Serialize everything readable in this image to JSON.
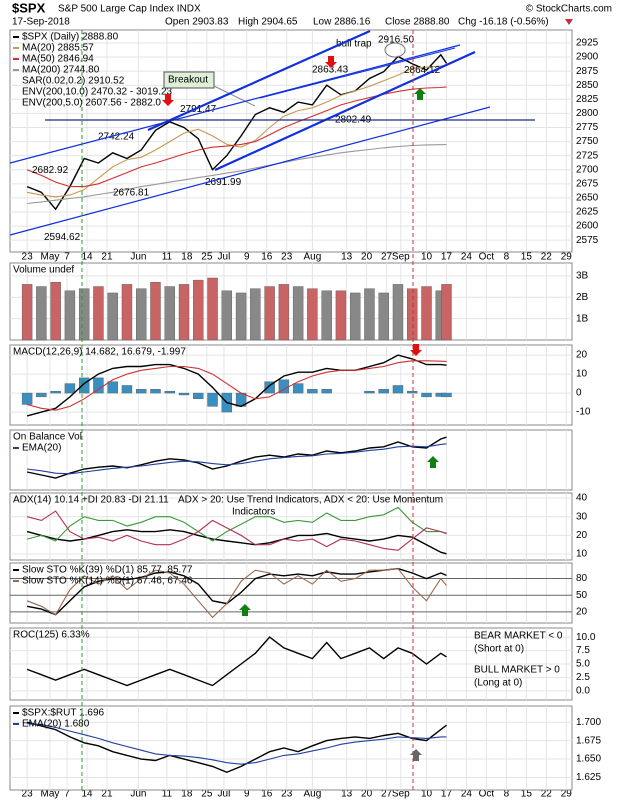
{
  "chart_data": {
    "type": "stock",
    "title": "$SPX",
    "subtitle": "S&P 500 Large Cap Index INDX",
    "date": "17-Sep-2018",
    "quote": [
      "Open 2903.83",
      "High 2904.65",
      "Low 2886.16",
      "Close 2888.80",
      "Chg -16.18 (-0.56%)"
    ],
    "credit": "© StockCharts.com",
    "x": [
      0,
      5,
      10,
      15,
      20,
      25,
      30,
      35,
      40,
      45,
      50,
      55,
      60,
      65,
      70,
      75,
      80,
      85,
      90,
      95,
      100,
      105,
      110,
      115,
      120,
      125,
      130,
      135,
      140,
      145,
      147
    ],
    "xlim": [
      -6,
      191
    ],
    "xticks": [
      {
        "value": 0,
        "label": "23"
      },
      {
        "value": 8,
        "label": "May"
      },
      {
        "value": 14,
        "label": "7"
      },
      {
        "value": 21,
        "label": "14"
      },
      {
        "value": 28,
        "label": "21"
      },
      {
        "value": 39,
        "label": "Jun"
      },
      {
        "value": 49,
        "label": "11"
      },
      {
        "value": 56,
        "label": "18"
      },
      {
        "value": 63,
        "label": "25"
      },
      {
        "value": 69,
        "label": "Jul"
      },
      {
        "value": 77,
        "label": "9"
      },
      {
        "value": 84,
        "label": "16"
      },
      {
        "value": 91,
        "label": "23"
      },
      {
        "value": 100,
        "label": "Aug"
      },
      {
        "value": 112,
        "label": "13"
      },
      {
        "value": 119,
        "label": "20"
      },
      {
        "value": 126,
        "label": "27"
      },
      {
        "value": 131,
        "label": "Sep"
      },
      {
        "value": 140,
        "label": "10"
      },
      {
        "value": 147,
        "label": "17"
      },
      {
        "value": 154,
        "label": "24"
      },
      {
        "value": 161,
        "label": "Oct"
      },
      {
        "value": 168,
        "label": "8"
      },
      {
        "value": 175,
        "label": "15"
      },
      {
        "value": 182,
        "label": "22"
      },
      {
        "value": 189,
        "label": "29"
      }
    ],
    "grid": true,
    "panels": [
      {
        "ylim": [
          2554,
          2948
        ],
        "yticks": [
          2575,
          2600,
          2625,
          2650,
          2675,
          2700,
          2725,
          2750,
          2775,
          2800,
          2825,
          2850,
          2875,
          2900,
          2925
        ],
        "series": [
          {
            "name": "$SPX (Daily) 2888.80",
            "type": "line",
            "color": "#000000",
            "values": [
              2670,
              2660,
              2630,
              2670,
              2720,
              2712,
              2730,
              2720,
              2735,
              2770,
              2785,
              2775,
              2755,
              2700,
              2725,
              2760,
              2798,
              2810,
              2802,
              2820,
              2815,
              2850,
              2833,
              2840,
              2862,
              2874,
              2901,
              2888,
              2877,
              2904,
              2888.8
            ]
          },
          {
            "name": "MA(20) 2885.57",
            "type": "line",
            "color": "#c89a50",
            "values": [
              2660,
              2655,
              2652,
              2655,
              2665,
              2685,
              2705,
              2718,
              2722,
              2735,
              2750,
              2765,
              2772,
              2760,
              2745,
              2740,
              2752,
              2775,
              2795,
              2805,
              2810,
              2820,
              2832,
              2840,
              2848,
              2858,
              2868,
              2880,
              2882,
              2884,
              2885.57
            ]
          },
          {
            "name": "MA(50) 2846.94",
            "type": "line",
            "color": "#d03030",
            "values": [
              2700,
              2690,
              2678,
              2670,
              2670,
              2675,
              2685,
              2695,
              2705,
              2712,
              2720,
              2728,
              2735,
              2740,
              2742,
              2745,
              2750,
              2762,
              2775,
              2785,
              2795,
              2805,
              2815,
              2822,
              2828,
              2834,
              2839,
              2843,
              2845,
              2846,
              2846.94
            ]
          },
          {
            "name": "MA(200) 2744.80",
            "type": "line",
            "color": "#999999",
            "values": [
              2640,
              2643,
              2646,
              2649,
              2652,
              2656,
              2660,
              2665,
              2670,
              2674,
              2678,
              2682,
              2686,
              2690,
              2694,
              2698,
              2703,
              2708,
              2713,
              2718,
              2722,
              2726,
              2730,
              2733,
              2736,
              2739,
              2741,
              2743,
              2744,
              2744.5,
              2744.8
            ]
          }
        ],
        "notes": [
          "SAR(0.02,0.2) 2910.52",
          "ENV(200,10.0) 2470.32 - 3019.23",
          "ENV(200,5.0) 2607.56 - 2882.0"
        ],
        "price_labels": [
          2682.92,
          2594.62,
          2742.24,
          2676.81,
          2791.47,
          2691.99,
          2802.49,
          2863.43,
          {
            "value": 2916.5,
            "label": "2916.50"
          },
          2864.12
        ],
        "annotations": [
          "Breakout",
          "bull trap"
        ]
      },
      {
        "title": "Volume undef",
        "ylim": [
          0,
          3600000000.0
        ],
        "yticks": [
          {
            "value": 1000000000.0,
            "label": "1B"
          },
          {
            "value": 2000000000.0,
            "label": "2B"
          },
          {
            "value": 3000000000.0,
            "label": "3B"
          }
        ],
        "series": [
          {
            "type": "bar",
            "color": "#888888",
            "values": [
              2600000000.0,
              2500000000.0,
              2700000000.0,
              2300000000.0,
              2400000000.0,
              2500000000.0,
              2200000000.0,
              2600000000.0,
              2400000000.0,
              2700000000.0,
              2500000000.0,
              2600000000.0,
              2800000000.0,
              2900000000.0,
              2300000000.0,
              2200000000.0,
              2400000000.0,
              2500000000.0,
              2600000000.0,
              2500000000.0,
              2400000000.0,
              2300000000.0,
              2300000000.0,
              2200000000.0,
              2400000000.0,
              2200000000.0,
              2600000000.0,
              2400000000.0,
              2500000000.0,
              2300000000.0,
              2600000000.0
            ],
            "colors": [
              "#c86464",
              "#888888",
              "#c86464",
              "#888888",
              "#888888",
              "#c86464",
              "#888888",
              "#c86464",
              "#888888",
              "#c86464",
              "#888888",
              "#c86464",
              "#c86464",
              "#c86464",
              "#888888",
              "#888888",
              "#888888",
              "#c86464",
              "#c86464",
              "#888888",
              "#c86464",
              "#888888",
              "#c86464",
              "#888888",
              "#888888",
              "#888888",
              "#888888",
              "#c86464",
              "#c86464",
              "#888888",
              "#c86464"
            ]
          }
        ]
      },
      {
        "title": "MACD(12,26,9) 14.682, 16.679, -1.997",
        "ylim": [
          -16.8,
          25.3
        ],
        "yticks": [
          20,
          10,
          0,
          -10
        ],
        "series": [
          {
            "type": "bar",
            "color": "#3a8fc0",
            "values": [
              -6,
              -2,
              1,
              5,
              8,
              8,
              6,
              4,
              2,
              2,
              1,
              -1,
              -3,
              -7,
              -10,
              -7,
              0,
              6,
              7,
              5,
              2,
              2,
              0,
              0,
              1,
              2,
              4,
              1,
              -2,
              -1.8,
              -1.997
            ]
          },
          {
            "type": "line",
            "color": "#000000",
            "values": [
              -12,
              -10,
              -8,
              -2,
              5,
              10,
              13,
              14,
              14,
              15,
              15,
              13,
              10,
              3,
              -5,
              -7,
              -3,
              4,
              9,
              11,
              11,
              13,
              12,
              12,
              14,
              16,
              20,
              18,
              15,
              15,
              14.682
            ]
          },
          {
            "type": "line",
            "color": "#d03030",
            "values": [
              -6,
              -8,
              -9,
              -7,
              -3,
              2,
              7,
              10,
              12,
              13,
              14,
              14,
              13,
              10,
              5,
              0,
              -3,
              -2,
              2,
              6,
              9,
              11,
              12,
              12,
              13,
              14,
              16,
              17,
              17,
              16.8,
              16.679
            ]
          }
        ]
      },
      {
        "title": "On Balance Vol",
        "ylim": [
          0,
          100
        ],
        "yticks": [],
        "series": [
          {
            "type": "line",
            "color": "#000000",
            "values": [
              30,
              25,
              20,
              28,
              35,
              38,
              40,
              37,
              42,
              48,
              52,
              50,
              45,
              35,
              40,
              48,
              55,
              58,
              55,
              60,
              58,
              65,
              62,
              65,
              70,
              72,
              80,
              72,
              70,
              85,
              88
            ]
          },
          {
            "name": "EMA(20)",
            "type": "line",
            "color": "#2040a0",
            "values": [
              35,
              32,
              28,
              27,
              30,
              33,
              36,
              38,
              40,
              43,
              46,
              48,
              47,
              44,
              42,
              44,
              48,
              52,
              54,
              56,
              57,
              60,
              61,
              63,
              66,
              68,
              72,
              73,
              72,
              76,
              77
            ]
          }
        ]
      },
      {
        "title": "ADX(14) 10.14 +DI 20.83 -DI 21.11",
        "ylim": [
          6.8,
          42.7
        ],
        "yticks": [
          40,
          30,
          20,
          10
        ],
        "notes": [
          "ADX > 20: Use Trend Indicators, ADX < 20: Use Momentum",
          "Indicators"
        ],
        "series": [
          {
            "type": "line",
            "color": "#000000",
            "values": [
              22,
              20,
              18,
              17,
              18,
              20,
              22,
              23,
              22,
              22,
              23,
              22,
              20,
              18,
              17,
              16,
              15,
              16,
              18,
              20,
              20,
              21,
              19,
              18,
              17,
              18,
              20,
              19,
              15,
              11,
              10.14
            ]
          },
          {
            "type": "line",
            "color": "#3a9a3a",
            "values": [
              18,
              20,
              17,
              25,
              30,
              28,
              28,
              25,
              27,
              30,
              30,
              27,
              22,
              17,
              22,
              26,
              30,
              30,
              27,
              28,
              27,
              32,
              28,
              28,
              30,
              31,
              35,
              27,
              22,
              22,
              20.83
            ]
          },
          {
            "type": "line",
            "color": "#b03050",
            "values": [
              30,
              28,
              33,
              22,
              18,
              19,
              17,
              20,
              17,
              15,
              15,
              18,
              22,
              28,
              24,
              20,
              15,
              15,
              18,
              17,
              18,
              14,
              18,
              17,
              15,
              13,
              12,
              18,
              24,
              22,
              21.11
            ]
          }
        ]
      },
      {
        "ylim": [
          0,
          108
        ],
        "yticks": [
          80,
          50,
          20
        ],
        "series": [
          {
            "name": "Slow STO %K(39) %D(1) 85.77, 85.77",
            "type": "line",
            "color": "#000000",
            "values": [
              30,
              25,
              15,
              40,
              65,
              75,
              80,
              78,
              82,
              90,
              92,
              85,
              70,
              40,
              35,
              55,
              80,
              88,
              85,
              88,
              85,
              92,
              88,
              88,
              92,
              95,
              98,
              90,
              80,
              90,
              85.77
            ]
          },
          {
            "name": "Slow STO %K(14) %D(1) 67.46, 67.46",
            "type": "line",
            "color": "#9a6a50",
            "values": [
              40,
              30,
              15,
              60,
              85,
              70,
              85,
              60,
              80,
              95,
              90,
              70,
              40,
              10,
              35,
              75,
              95,
              90,
              70,
              85,
              70,
              95,
              75,
              80,
              95,
              95,
              98,
              65,
              40,
              80,
              67.46
            ]
          }
        ]
      },
      {
        "title": "ROC(125) 6.33%",
        "ylim": [
          -1.7,
          11.7
        ],
        "yticks": [
          {
            "value": 10,
            "label": "10.0"
          },
          7.5,
          {
            "value": 5,
            "label": "5.0"
          },
          2.5,
          {
            "value": 0,
            "label": "0.0"
          }
        ],
        "notes": [
          "BEAR MARKET < 0",
          "(Short at 0)",
          "BULL MARKET > 0",
          "(Long at 0)"
        ],
        "series": [
          {
            "type": "line",
            "color": "#000000",
            "values": [
              4,
              3,
              2,
              3,
              4,
              3,
              2,
              1,
              2,
              3,
              4,
              3,
              2,
              1,
              3,
              5,
              7,
              10,
              8,
              7,
              6,
              9,
              6,
              7,
              8,
              6,
              8,
              7,
              5,
              7,
              6.33
            ]
          }
        ]
      },
      {
        "ylim": [
          1.608,
          1.722
        ],
        "yticks": [
          {
            "value": 1.7,
            "label": "1.700"
          },
          1.675,
          {
            "value": 1.65,
            "label": "1.650"
          },
          1.625
        ],
        "series": [
          {
            "name": "$SPX:$RUT 1.696",
            "type": "line",
            "color": "#000000",
            "values": [
              1.7,
              1.695,
              1.69,
              1.68,
              1.672,
              1.668,
              1.66,
              1.655,
              1.65,
              1.648,
              1.655,
              1.65,
              1.645,
              1.64,
              1.632,
              1.64,
              1.65,
              1.66,
              1.665,
              1.66,
              1.668,
              1.675,
              1.678,
              1.68,
              1.678,
              1.682,
              1.685,
              1.678,
              1.675,
              1.69,
              1.696
            ]
          },
          {
            "name": "EMA(20) 1.680",
            "type": "line",
            "color": "#2040a0",
            "values": [
              1.698,
              1.697,
              1.693,
              1.688,
              1.683,
              1.678,
              1.672,
              1.667,
              1.662,
              1.657,
              1.655,
              1.654,
              1.652,
              1.649,
              1.645,
              1.643,
              1.645,
              1.65,
              1.655,
              1.657,
              1.661,
              1.665,
              1.67,
              1.673,
              1.675,
              1.677,
              1.68,
              1.679,
              1.678,
              1.68,
              1.68
            ]
          }
        ]
      }
    ]
  }
}
